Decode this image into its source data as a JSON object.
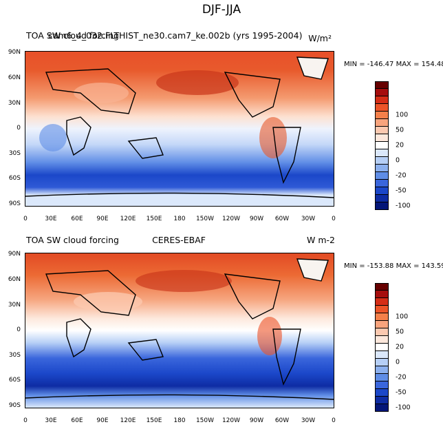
{
  "title": "DJF-JJA",
  "panels": [
    {
      "label_left": "TOA SW cloud forcing",
      "label_center": "",
      "label_overlay": "cam6_4_032.FLTHIST_ne30.cam7_ke.002b (yrs 1995-2004)",
      "label_right": "W/m²",
      "minmax": "MIN = -146.47 MAX = 154.48"
    },
    {
      "label_left": "TOA SW cloud forcing",
      "label_center": "CERES-EBAF",
      "label_overlay": "",
      "label_right": "W m-2",
      "minmax": "MIN = -153.88 MAX = 143.59"
    }
  ],
  "lat_ticks": [
    "90N",
    "60N",
    "30N",
    "0",
    "30S",
    "60S",
    "90S"
  ],
  "lon_ticks": [
    "0",
    "30E",
    "60E",
    "90E",
    "120E",
    "150E",
    "180",
    "150W",
    "120W",
    "90W",
    "60W",
    "30W",
    "0"
  ],
  "colorbar": {
    "labels": [
      "100",
      "50",
      "20",
      "0",
      "-20",
      "-50",
      "-100"
    ],
    "colors": [
      "#670000",
      "#a50d0d",
      "#d52d16",
      "#ec5428",
      "#f4804a",
      "#f9a47d",
      "#fcc9b0",
      "#fde8dc",
      "#ffffff",
      "#dbe8fb",
      "#b6cff6",
      "#8cb0ee",
      "#5f8de6",
      "#3a66dc",
      "#1b47c9",
      "#0e2ca3",
      "#041678"
    ]
  },
  "colors": {
    "ocean_base": "#e8eefc",
    "warm_band": "#f07a3c",
    "cold_band": "#1b47c9"
  }
}
